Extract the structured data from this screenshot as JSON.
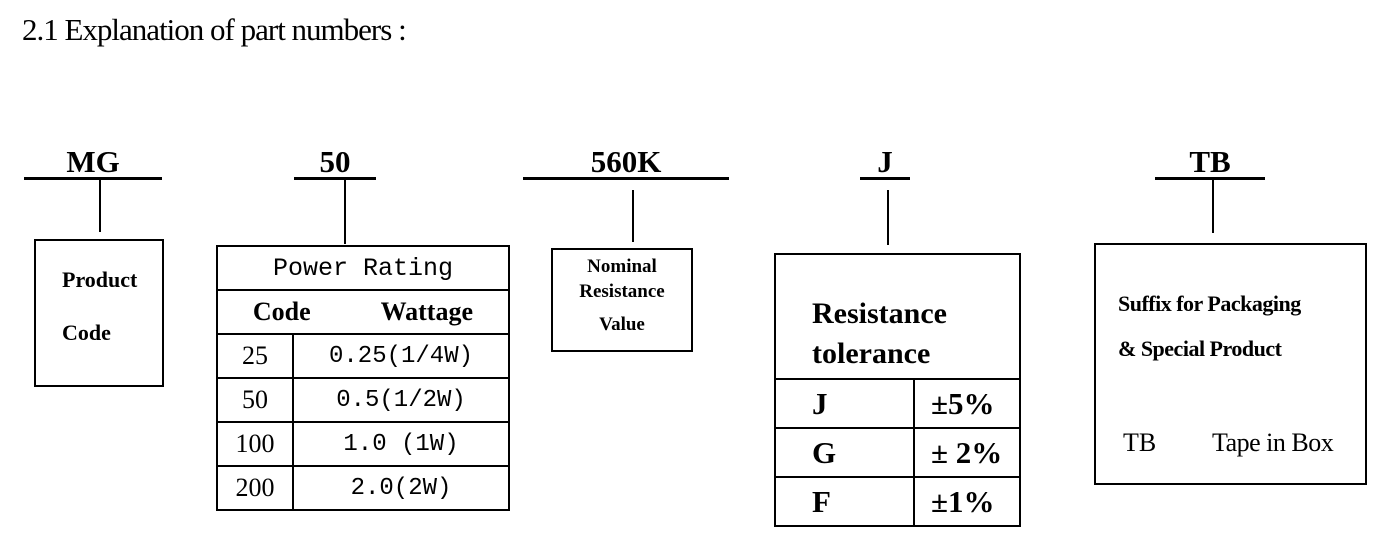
{
  "title": "2.1 Explanation of part numbers :",
  "segments": {
    "mg": {
      "code": "MG",
      "box_line1": "Product",
      "box_line2": "Code"
    },
    "power": {
      "code": "50",
      "header": "Power Rating",
      "col_code": "Code",
      "col_wattage": "Wattage",
      "rows": [
        {
          "code": "25",
          "wattage": "0.25(1/4W)"
        },
        {
          "code": "50",
          "wattage": "0.5(1/2W)"
        },
        {
          "code": "100",
          "wattage": "1.0 (1W)"
        },
        {
          "code": "200",
          "wattage": "2.0(2W)"
        }
      ]
    },
    "resistance": {
      "code": "560K",
      "line1": "Nominal",
      "line2": "Resistance",
      "line3": "Value"
    },
    "tolerance": {
      "code": "J",
      "header_line1": "Resistance",
      "header_line2": "tolerance",
      "rows": [
        {
          "code": "J",
          "value": "±5%"
        },
        {
          "code": "G",
          "value": "± 2%"
        },
        {
          "code": "F",
          "value": "±1%"
        }
      ]
    },
    "suffix": {
      "code": "TB",
      "line1": "Suffix for Packaging",
      "line2": "& Special Product",
      "item_code": "TB",
      "item_desc": "Tape in Box"
    }
  }
}
